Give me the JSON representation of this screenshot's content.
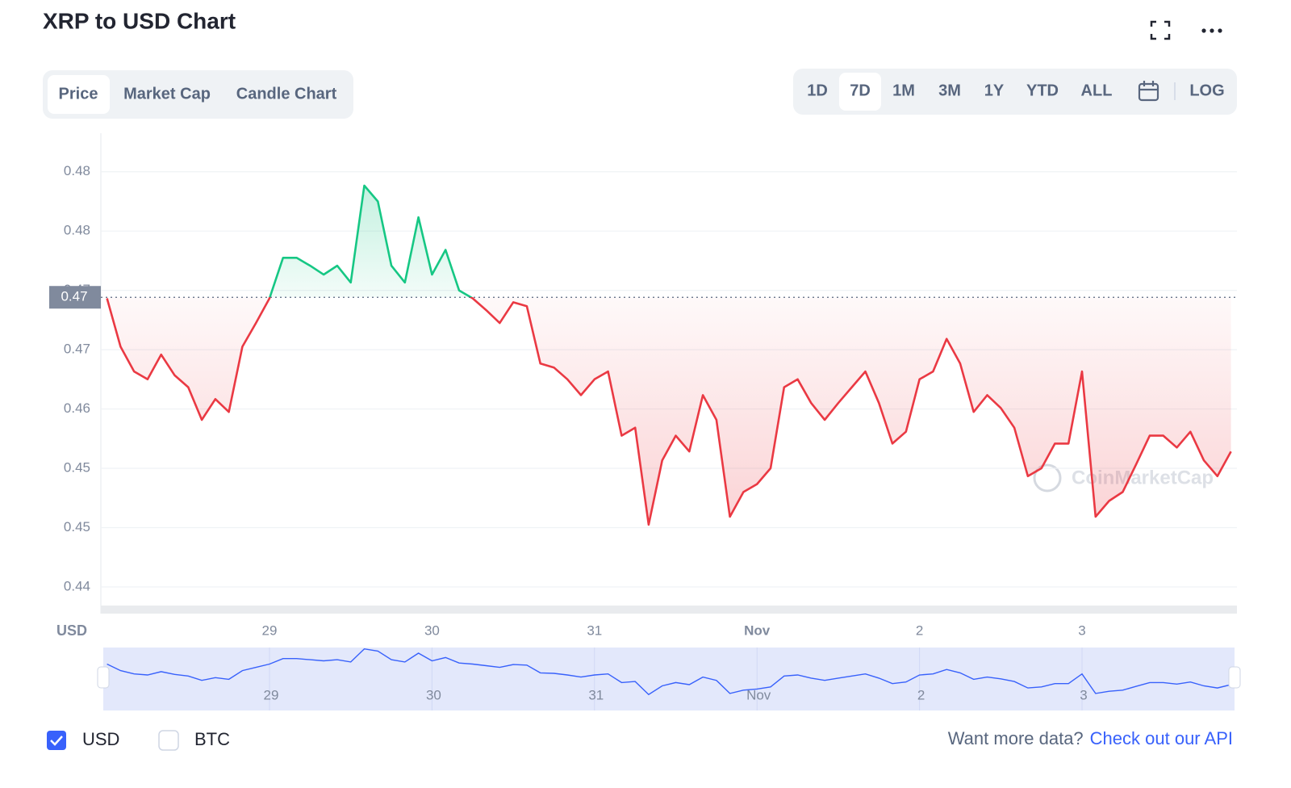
{
  "header": {
    "tabs": [
      "Price",
      "Market Cap",
      "Candle Chart"
    ],
    "ranges": [
      "1D",
      "7D",
      "1M",
      "3M",
      "1Y",
      "YTD",
      "ALL"
    ],
    "log_label": "LOG"
  },
  "chart_data": {
    "type": "line",
    "title": "XRP to USD Chart",
    "y_label": "USD",
    "watermark": "CoinMarketCap",
    "categories": [
      null,
      null,
      null,
      null,
      null,
      null,
      null,
      null,
      null,
      null,
      null,
      null,
      "29",
      null,
      null,
      null,
      null,
      null,
      null,
      null,
      null,
      null,
      null,
      null,
      "30",
      null,
      null,
      null,
      null,
      null,
      null,
      null,
      null,
      null,
      null,
      null,
      "31",
      null,
      null,
      null,
      null,
      null,
      null,
      null,
      null,
      null,
      null,
      null,
      "Nov",
      null,
      null,
      null,
      null,
      null,
      null,
      null,
      null,
      null,
      null,
      null,
      "2",
      null,
      null,
      null,
      null,
      null,
      null,
      null,
      null,
      null,
      null,
      null,
      "3",
      null,
      null,
      null,
      null,
      null,
      null,
      null,
      null,
      null,
      null,
      null
    ],
    "values": [
      0.4712,
      0.4663,
      0.4638,
      0.463,
      0.4655,
      0.4634,
      0.4622,
      0.4589,
      0.461,
      0.4597,
      0.4663,
      0.4687,
      0.4712,
      0.4753,
      0.4753,
      0.4745,
      0.4736,
      0.4745,
      0.4728,
      0.4826,
      0.481,
      0.4745,
      0.4728,
      0.4794,
      0.4736,
      0.4761,
      0.472,
      0.4712,
      0.47,
      0.4687,
      0.4708,
      0.4704,
      0.4646,
      0.4642,
      0.463,
      0.4614,
      0.463,
      0.4638,
      0.4573,
      0.4581,
      0.4483,
      0.4548,
      0.4573,
      0.4557,
      0.4614,
      0.4589,
      0.4491,
      0.4516,
      0.4524,
      0.454,
      0.4622,
      0.463,
      0.4606,
      0.4589,
      0.4606,
      0.4622,
      0.4638,
      0.4606,
      0.4565,
      0.4577,
      0.463,
      0.4638,
      0.4671,
      0.4646,
      0.4597,
      0.4614,
      0.4601,
      0.4581,
      0.4532,
      0.454,
      0.4565,
      0.4565,
      0.4638,
      0.4491,
      0.4507,
      0.4516,
      0.4544,
      0.4573,
      0.4573,
      0.4561,
      0.4577,
      0.4548,
      0.4532,
      0.4557
    ],
    "baseline": {
      "value": 0.4713,
      "label": "0.47"
    },
    "up_color": "#16c784",
    "down_color": "#ea3943",
    "navigator_color": "#3861fb",
    "ylim": [
      0.4393,
      0.4879
    ],
    "yticks": [
      {
        "value": 0.442,
        "label": "0.44"
      },
      {
        "value": 0.448,
        "label": "0.45"
      },
      {
        "value": 0.454,
        "label": "0.45"
      },
      {
        "value": 0.46,
        "label": "0.46"
      },
      {
        "value": 0.466,
        "label": "0.47"
      },
      {
        "value": 0.472,
        "label": "0.47"
      },
      {
        "value": 0.478,
        "label": "0.48"
      },
      {
        "value": 0.484,
        "label": "0.48"
      }
    ],
    "grid": true
  },
  "currencies": [
    {
      "label": "USD",
      "checked": true
    },
    {
      "label": "BTC",
      "checked": false
    }
  ],
  "footer": {
    "question": "Want more data?",
    "link": "Check out our API"
  }
}
